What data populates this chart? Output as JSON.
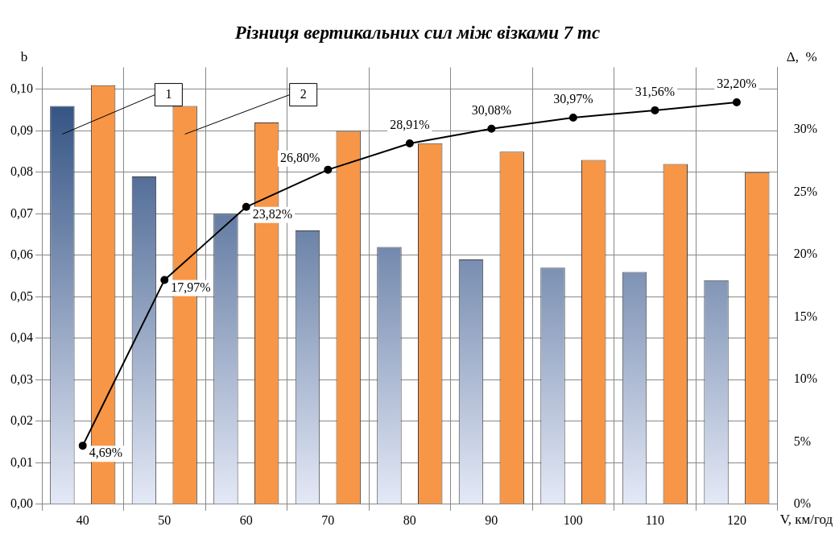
{
  "chart_data": {
    "type": "bar",
    "title": "Різниця вертикальних сил між візками 7 тс",
    "xlabel": "V, км/год",
    "ylabel": "b",
    "y2label": "Δ,  %",
    "categories": [
      "40",
      "50",
      "60",
      "70",
      "80",
      "90",
      "100",
      "110",
      "120"
    ],
    "series": [
      {
        "name": "1",
        "color": "#24467a",
        "values": [
          0.096,
          0.079,
          0.07,
          0.066,
          0.062,
          0.059,
          0.057,
          0.056,
          0.054
        ]
      },
      {
        "name": "2",
        "color": "#f79646",
        "values": [
          0.101,
          0.096,
          0.092,
          0.09,
          0.087,
          0.085,
          0.083,
          0.082,
          0.08
        ]
      },
      {
        "type": "line",
        "axis": "y2",
        "color": "#000000",
        "marker": "circle",
        "line_style": "solid",
        "values": [
          4.69,
          17.97,
          23.82,
          26.8,
          28.91,
          30.08,
          30.97,
          31.56,
          32.2
        ],
        "value_labels": [
          "4,69%",
          "17,97%",
          "23,82%",
          "26,80%",
          "28,91%",
          "30,08%",
          "30,97%",
          "31,56%",
          "32,20%"
        ]
      }
    ],
    "ylim": [
      0,
      0.1053
    ],
    "yticks": [
      {
        "value": 0,
        "label": "0,00"
      },
      {
        "value": 0.01,
        "label": "0,01"
      },
      {
        "value": 0.02,
        "label": "0,02"
      },
      {
        "value": 0.03,
        "label": "0,03"
      },
      {
        "value": 0.04,
        "label": "0,04"
      },
      {
        "value": 0.05,
        "label": "0,05"
      },
      {
        "value": 0.06,
        "label": "0,06"
      },
      {
        "value": 0.07,
        "label": "0,07"
      },
      {
        "value": 0.08,
        "label": "0,08"
      },
      {
        "value": 0.09,
        "label": "0,09"
      },
      {
        "value": 0.1,
        "label": "0,10"
      }
    ],
    "y2lim": [
      0,
      35
    ],
    "y2ticks": [
      {
        "value": 0,
        "label": "0%"
      },
      {
        "value": 5,
        "label": "5%"
      },
      {
        "value": 10,
        "label": "10%"
      },
      {
        "value": 15,
        "label": "15%"
      },
      {
        "value": 20,
        "label": "20%"
      },
      {
        "value": 25,
        "label": "25%"
      },
      {
        "value": 30,
        "label": "30%"
      }
    ],
    "grid": true,
    "legend": false
  }
}
